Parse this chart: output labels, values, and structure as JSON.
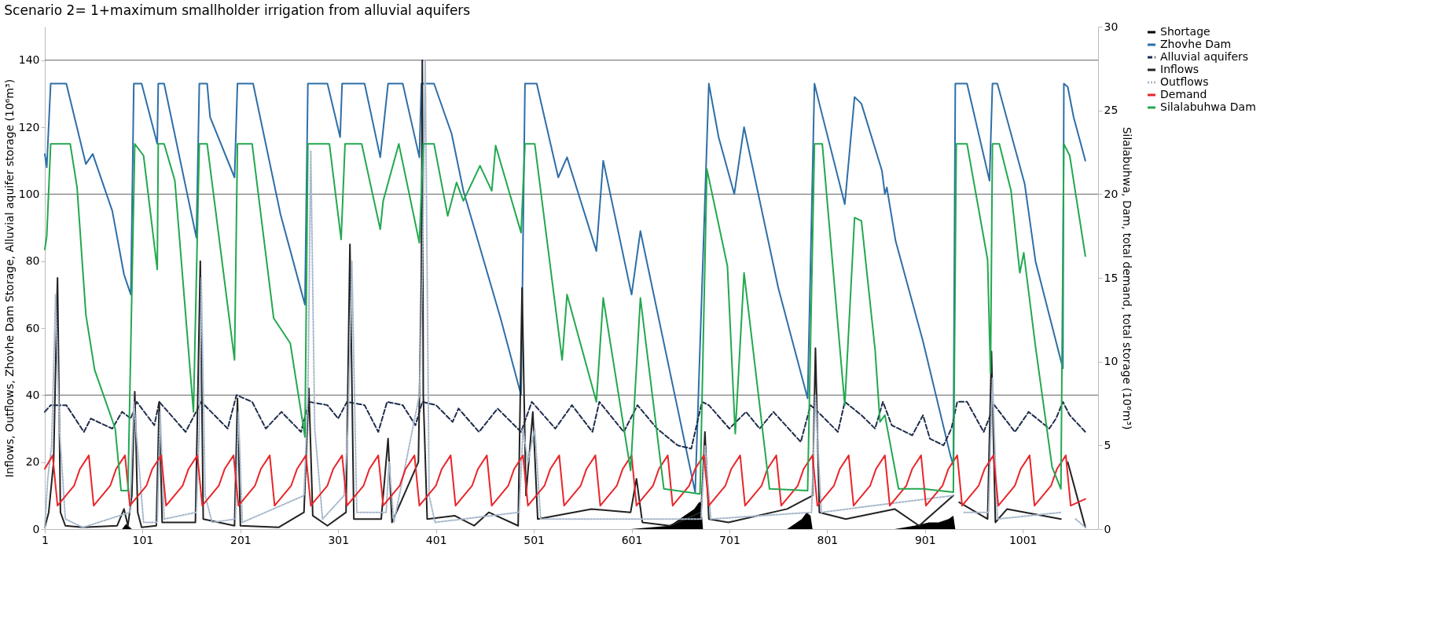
{
  "chart_data": {
    "type": "line",
    "title": "Scenario 2= 1+maximum smallholder irrigation from alluvial aquifers",
    "ylabel": "Inflows, Outflows, Zhovhe Dam Storage, Alluvial aquifer storage (10⁶m³)",
    "y2label": "Silalabuhwa, Dam, total demand, total storage (10⁶m³)",
    "xlim": [
      1,
      1078
    ],
    "xticks": [
      1,
      101,
      201,
      301,
      401,
      501,
      601,
      701,
      801,
      901,
      1001
    ],
    "ylim": [
      0,
      150
    ],
    "yticks": [
      0,
      20,
      40,
      60,
      80,
      100,
      120,
      140
    ],
    "y2lim": [
      0,
      30
    ],
    "y2ticks": [
      0,
      5,
      10,
      15,
      20,
      25,
      30
    ],
    "legend": "right",
    "grid": false,
    "ref_lines": [
      {
        "axis": "y",
        "value": 40,
        "color": "#808080"
      },
      {
        "axis": "y",
        "value": 100,
        "color": "#808080"
      },
      {
        "axis": "y",
        "value": 140,
        "color": "#808080"
      }
    ],
    "series": [
      {
        "name": "Shortage",
        "type": "area",
        "color": "#000000",
        "axis": "y",
        "x": [
          1,
          80,
          84,
          88,
          90,
          600,
          640,
          650,
          660,
          665,
          670,
          672,
          674,
          760,
          770,
          775,
          780,
          784,
          786,
          870,
          890,
          905,
          915,
          925,
          930,
          932,
          1065
        ],
        "values": [
          0,
          0,
          1.5,
          0.5,
          0,
          0,
          1,
          3,
          5,
          6,
          8,
          8,
          0,
          0,
          2,
          3,
          5,
          4,
          0,
          0,
          1,
          2,
          2,
          3,
          4,
          0,
          0
        ]
      },
      {
        "name": "Zhovhe Dam",
        "color": "#2e6fa7",
        "line_style": "solid",
        "axis": "y",
        "x": [
          1,
          3,
          7,
          23,
          43,
          50,
          70,
          82,
          89,
          92,
          100,
          116,
          117,
          123,
          156,
          159,
          167,
          170,
          195,
          198,
          214,
          242,
          267,
          270,
          290,
          303,
          305,
          328,
          344,
          352,
          367,
          384,
          386,
          399,
          417,
          429,
          457,
          467,
          488,
          492,
          504,
          526,
          535,
          565,
          572,
          601,
          610,
          666,
          680,
          690,
          706,
          716,
          751,
          781,
          788,
          793,
          819,
          829,
          836,
          857,
          860,
          862,
          871,
          899,
          927,
          930,
          932,
          944,
          967,
          970,
          975,
          1003,
          1014,
          1042,
          1043,
          1047,
          1053,
          1065
        ],
        "values": [
          112,
          108,
          133,
          133,
          109,
          112,
          95,
          76,
          70,
          133,
          133,
          115,
          133,
          133,
          87,
          133,
          133,
          123,
          105,
          133,
          133,
          94,
          67,
          133,
          133,
          117,
          133,
          133,
          111,
          133,
          133,
          111,
          133,
          133,
          118,
          101,
          73,
          63,
          40,
          133,
          133,
          105,
          111,
          83,
          110,
          70,
          89,
          11,
          133,
          117,
          100,
          120,
          72,
          39,
          133,
          127,
          97,
          129,
          127,
          107,
          100,
          102,
          86,
          56,
          22,
          19,
          133,
          133,
          104,
          133,
          133,
          103,
          80,
          48,
          133,
          132,
          123,
          110
        ]
      },
      {
        "name": "Alluvial aquifers",
        "color": "#1f2d4d",
        "line_style": "dashed",
        "axis": "y",
        "x": [
          1,
          7,
          23,
          41,
          48,
          70,
          80,
          89,
          95,
          113,
          118,
          145,
          161,
          188,
          197,
          213,
          227,
          243,
          263,
          271,
          290,
          301,
          310,
          328,
          342,
          351,
          367,
          380,
          387,
          401,
          418,
          424,
          445,
          464,
          488,
          499,
          523,
          540,
          561,
          568,
          593,
          607,
          627,
          648,
          662,
          673,
          680,
          701,
          718,
          732,
          746,
          774,
          784,
          795,
          812,
          819,
          836,
          850,
          858,
          867,
          888,
          899,
          906,
          920,
          928,
          934,
          944,
          961,
          972,
          993,
          1007,
          1028,
          1035,
          1042,
          1049,
          1065
        ],
        "values": [
          35,
          37,
          37,
          29,
          33,
          30,
          35,
          33,
          38,
          31,
          38,
          29,
          38,
          30,
          40,
          38,
          30,
          35,
          29,
          38,
          37,
          33,
          38,
          37,
          29,
          38,
          37,
          31,
          38,
          37,
          32,
          36,
          29,
          36,
          29,
          38,
          30,
          37,
          29,
          38,
          29,
          37,
          30,
          25,
          24,
          38,
          37,
          30,
          35,
          30,
          35,
          26,
          37,
          34,
          29,
          38,
          34,
          30,
          38,
          31,
          28,
          34,
          27,
          25,
          30,
          38,
          38,
          29,
          37,
          29,
          35,
          30,
          33,
          38,
          34,
          29
        ]
      },
      {
        "name": "Inflows",
        "color": "#222222",
        "line_style": "solid",
        "axis": "y",
        "x": [
          1,
          5,
          10,
          14,
          17,
          22,
          40,
          75,
          82,
          86,
          90,
          93,
          96,
          100,
          115,
          118,
          121,
          155,
          160,
          163,
          195,
          198,
          201,
          240,
          266,
          271,
          275,
          290,
          309,
          313,
          317,
          345,
          352,
          356,
          383,
          386,
          387,
          388,
          392,
          420,
          440,
          455,
          485,
          489,
          493,
          500,
          505,
          560,
          600,
          606,
          612,
          640,
          672,
          676,
          680,
          700,
          760,
          786,
          789,
          793,
          820,
          870,
          895,
          930,
          933,
          936,
          965,
          969,
          973,
          985,
          1040,
          1044,
          1047,
          1065
        ],
        "values": [
          0.5,
          5,
          20,
          75,
          5,
          1,
          0.5,
          1,
          6,
          1,
          10,
          41,
          5,
          0.5,
          1,
          38,
          2,
          2,
          80,
          3,
          1,
          39,
          1,
          0.5,
          5,
          42,
          4,
          1,
          5,
          85,
          3,
          3,
          27,
          2,
          20,
          75,
          140,
          40,
          3,
          4,
          1,
          5,
          1,
          72,
          10,
          35,
          3,
          6,
          5,
          15,
          2,
          1,
          5,
          29,
          3,
          2,
          6,
          10,
          54,
          5,
          3,
          6,
          1,
          10,
          null,
          8,
          3,
          53,
          2,
          6,
          3,
          null,
          20,
          0.5
        ]
      },
      {
        "name": "Outflows",
        "color": "#a8b8cc",
        "line_style": "dotted",
        "axis": "y",
        "x": [
          1,
          4,
          8,
          12,
          16,
          22,
          40,
          88,
          92,
          97,
          102,
          116,
          119,
          123,
          156,
          159,
          161,
          165,
          172,
          196,
          199,
          203,
          266,
          270,
          273,
          277,
          285,
          307,
          311,
          315,
          320,
          350,
          353,
          358,
          384,
          387,
          390,
          394,
          400,
          486,
          490,
          495,
          502,
          508,
          672,
          676,
          682,
          785,
          789,
          795,
          929,
          932,
          937,
          941,
          966,
          970,
          975,
          1041,
          1044,
          1051,
          1055,
          1065
        ],
        "values": [
          0.5,
          15,
          25,
          70,
          30,
          3,
          0.5,
          5,
          38,
          20,
          2,
          2,
          35,
          3,
          5,
          30,
          75,
          10,
          2,
          3,
          35,
          2,
          10,
          40,
          113,
          30,
          3,
          10,
          30,
          80,
          5,
          5,
          20,
          2,
          40,
          75,
          140,
          10,
          2,
          5,
          30,
          20,
          30,
          3,
          3,
          25,
          3,
          5,
          40,
          5,
          10,
          null,
          null,
          5,
          5,
          45,
          3,
          5,
          null,
          null,
          3,
          0.5
        ]
      },
      {
        "name": "Demand",
        "color": "#e8262a",
        "line_style": "solid",
        "axis": "y2",
        "x": [
          1,
          9,
          14,
          31,
          37,
          46,
          51,
          68,
          74,
          83,
          88,
          105,
          111,
          120,
          125,
          142,
          148,
          157,
          162,
          179,
          185,
          194,
          199,
          216,
          222,
          231,
          236,
          253,
          259,
          268,
          273,
          290,
          296,
          305,
          310,
          327,
          333,
          342,
          347,
          364,
          370,
          379,
          384,
          401,
          407,
          416,
          421,
          438,
          444,
          453,
          458,
          475,
          481,
          490,
          495,
          512,
          518,
          527,
          532,
          549,
          555,
          564,
          569,
          586,
          592,
          601,
          606,
          623,
          629,
          638,
          643,
          660,
          666,
          675,
          680,
          697,
          703,
          712,
          717,
          734,
          740,
          749,
          754,
          771,
          777,
          786,
          791,
          808,
          814,
          823,
          828,
          845,
          851,
          860,
          865,
          882,
          888,
          897,
          902,
          919,
          925,
          934,
          939,
          956,
          962,
          971,
          976,
          993,
          999,
          1008,
          1013,
          1030,
          1036,
          1045,
          1050,
          1065
        ],
        "values": [
          3.6,
          4.4,
          1.4,
          2.6,
          3.6,
          4.4,
          1.4,
          2.6,
          3.6,
          4.4,
          1.4,
          2.6,
          3.6,
          4.4,
          1.4,
          2.6,
          3.6,
          4.4,
          1.4,
          2.6,
          3.6,
          4.4,
          1.4,
          2.6,
          3.6,
          4.4,
          1.4,
          2.6,
          3.6,
          4.4,
          1.4,
          2.6,
          3.6,
          4.4,
          1.4,
          2.6,
          3.6,
          4.4,
          1.4,
          2.6,
          3.6,
          4.4,
          1.4,
          2.6,
          3.6,
          4.4,
          1.4,
          2.6,
          3.6,
          4.4,
          1.4,
          2.6,
          3.6,
          4.4,
          1.4,
          2.6,
          3.6,
          4.4,
          1.4,
          2.6,
          3.6,
          4.4,
          1.4,
          2.6,
          3.6,
          4.4,
          1.4,
          2.6,
          3.6,
          4.4,
          1.4,
          2.6,
          3.6,
          4.4,
          1.4,
          2.6,
          3.6,
          4.4,
          1.4,
          2.6,
          3.6,
          4.4,
          1.4,
          2.6,
          3.6,
          4.4,
          1.4,
          2.6,
          3.6,
          4.4,
          1.4,
          2.6,
          3.6,
          4.4,
          1.4,
          2.6,
          3.6,
          4.4,
          1.4,
          2.6,
          3.6,
          4.4,
          1.4,
          2.6,
          3.6,
          4.4,
          1.4,
          2.6,
          3.6,
          4.4,
          1.4,
          2.6,
          3.6,
          4.4,
          1.4,
          1.8
        ]
      },
      {
        "name": "Silalabuhwa Dam",
        "color": "#22a84f",
        "line_style": "solid",
        "axis": "y2",
        "x": [
          1,
          3,
          7,
          27,
          34,
          43,
          52,
          73,
          79,
          86,
          93,
          102,
          116,
          117,
          123,
          134,
          153,
          159,
          167,
          195,
          198,
          213,
          235,
          252,
          267,
          270,
          292,
          304,
          308,
          325,
          344,
          347,
          363,
          384,
          388,
          399,
          413,
          422,
          429,
          446,
          458,
          462,
          488,
          492,
          502,
          530,
          535,
          565,
          572,
          600,
          610,
          634,
          671,
          678,
          699,
          707,
          716,
          742,
          781,
          788,
          796,
          819,
          829,
          836,
          850,
          855,
          860,
          874,
          899,
          930,
          933,
          944,
          965,
          968,
          970,
          977,
          989,
          998,
          1002,
          1014,
          1031,
          1040,
          1043,
          1049,
          1065
        ],
        "values": [
          16.7,
          17.5,
          23.0,
          23.0,
          20.4,
          12.8,
          9.5,
          6.0,
          2.3,
          2.3,
          23.0,
          22.3,
          15.5,
          23.0,
          23.0,
          20.8,
          7.0,
          23.0,
          23.0,
          10.1,
          23.0,
          23.0,
          12.6,
          11.1,
          5.5,
          23.0,
          23.0,
          17.3,
          23.0,
          23.0,
          17.9,
          19.6,
          23.0,
          17.1,
          23.0,
          23.0,
          18.7,
          20.7,
          19.6,
          21.7,
          20.2,
          22.9,
          17.7,
          23.0,
          23.0,
          10.1,
          14.0,
          7.6,
          13.8,
          3.5,
          13.8,
          2.4,
          2.1,
          21.5,
          15.7,
          5.7,
          15.3,
          2.4,
          2.3,
          23.0,
          23.0,
          7.4,
          18.6,
          18.4,
          10.7,
          6.4,
          6.8,
          2.4,
          2.4,
          2.2,
          23.0,
          23.0,
          16.1,
          9.3,
          23.0,
          23.0,
          20.2,
          15.3,
          16.5,
          10.9,
          3.7,
          2.4,
          23.0,
          22.3,
          16.3
        ]
      }
    ]
  }
}
